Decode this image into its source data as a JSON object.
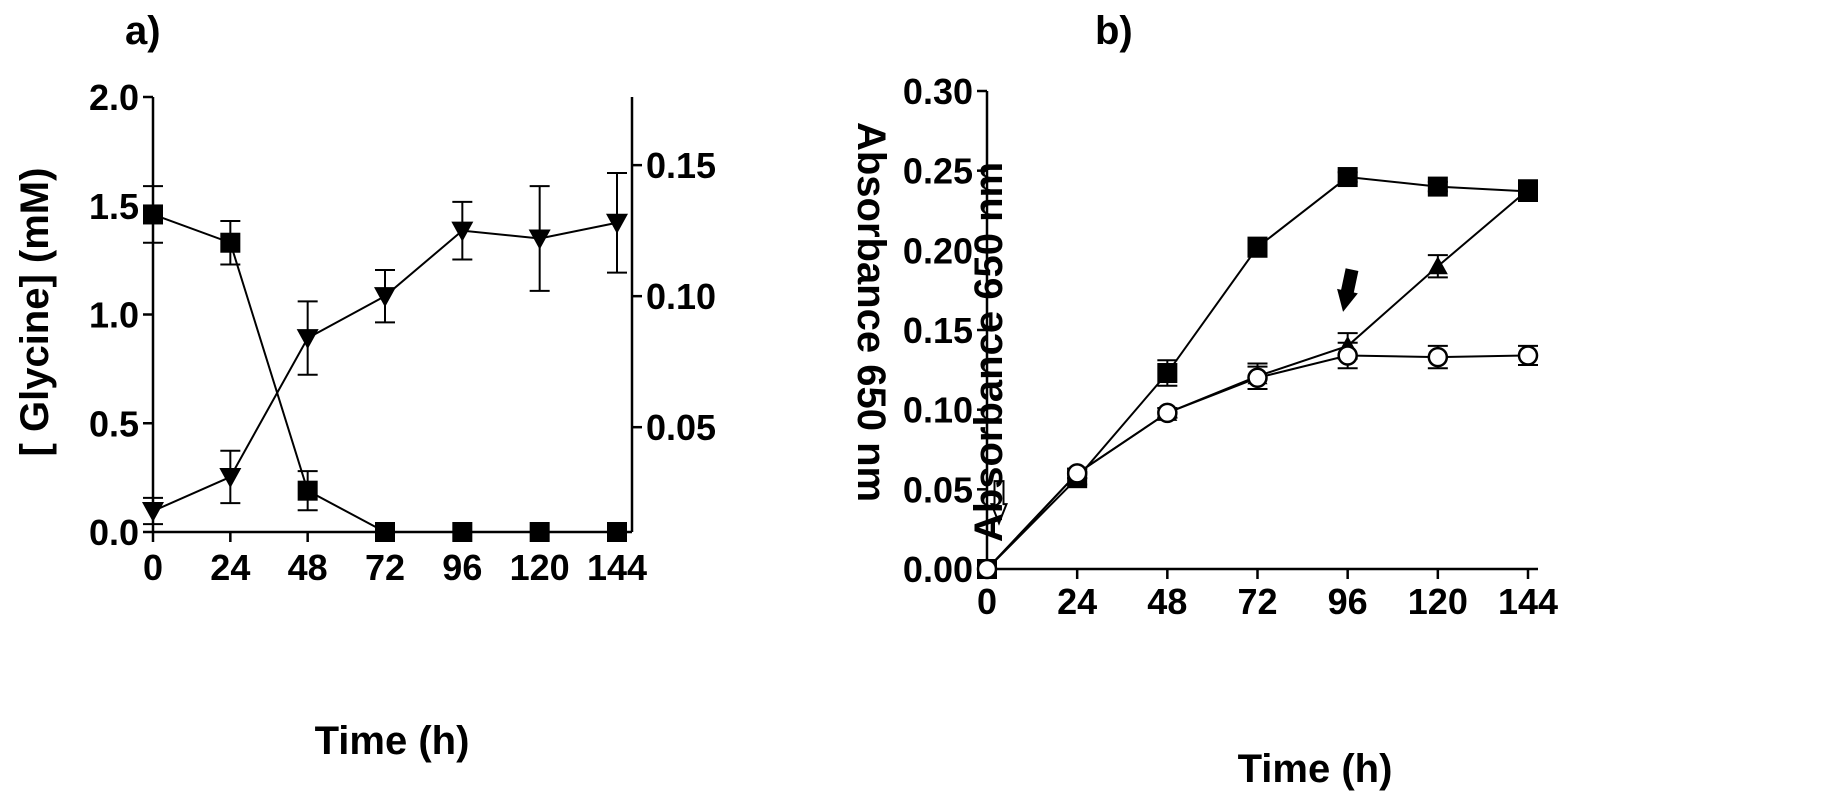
{
  "chart_data": [
    {
      "panel_label": "a)",
      "type": "line",
      "xlabel": "Time (h)",
      "ylabel_left": "[ Glycine] (mM)",
      "ylabel_right": "Absorbance 650 nm",
      "x_ticks": [
        "0",
        "24",
        "48",
        "72",
        "96",
        "120",
        "144"
      ],
      "y_left_ticks": [
        "0.0",
        "0.5",
        "1.0",
        "1.5",
        "2.0"
      ],
      "y_right_ticks": [
        "0.05",
        "0.10",
        "0.15"
      ],
      "xlim": [
        0,
        144
      ],
      "ylim_left": [
        0,
        2.0
      ],
      "ylim_right": [
        0.01,
        0.176
      ],
      "series": [
        {
          "marker": "square",
          "axis": "left",
          "x": [
            0,
            24,
            48,
            72,
            96,
            120,
            144
          ],
          "y": [
            1.46,
            1.33,
            0.19,
            0.0,
            0.0,
            0.0,
            0.0
          ],
          "err": [
            0.13,
            0.1,
            0.09,
            0.0,
            0.0,
            0.0,
            0.0
          ]
        },
        {
          "marker": "triangle-down",
          "axis": "right",
          "x": [
            0,
            24,
            48,
            72,
            96,
            120,
            144
          ],
          "y": [
            0.018,
            0.031,
            0.084,
            0.1,
            0.125,
            0.122,
            0.128
          ],
          "err": [
            0.005,
            0.01,
            0.014,
            0.01,
            0.011,
            0.02,
            0.019
          ]
        }
      ]
    },
    {
      "panel_label": "b)",
      "type": "line",
      "xlabel": "Time (h)",
      "ylabel": "Absorbance 650 nm",
      "x_ticks": [
        "0",
        "24",
        "48",
        "72",
        "96",
        "120",
        "144"
      ],
      "y_ticks": [
        "0.00",
        "0.05",
        "0.10",
        "0.15",
        "0.20",
        "0.25",
        "0.30"
      ],
      "xlim": [
        0,
        144
      ],
      "ylim": [
        0,
        0.3
      ],
      "series": [
        {
          "marker": "square",
          "x": [
            0,
            24,
            48,
            72,
            96,
            120,
            144
          ],
          "y": [
            0.0,
            0.057,
            0.123,
            0.202,
            0.246,
            0.24,
            0.237
          ],
          "err": [
            0.0,
            0.004,
            0.008,
            0.006,
            0.003,
            0.003,
            0.006
          ]
        },
        {
          "marker": "triangle-up",
          "x": [
            0,
            24,
            48,
            72,
            96,
            120,
            144
          ],
          "y": [
            0.0,
            0.06,
            0.098,
            0.121,
            0.14,
            0.19,
            0.238
          ],
          "err": [
            0.0,
            0.003,
            0.003,
            0.008,
            0.008,
            0.007,
            0.006
          ]
        },
        {
          "marker": "circle-open",
          "x": [
            0,
            24,
            48,
            72,
            96,
            120,
            144
          ],
          "y": [
            0.0,
            0.06,
            0.098,
            0.12,
            0.134,
            0.133,
            0.134
          ],
          "err": [
            0.0,
            0.003,
            0.003,
            0.007,
            0.008,
            0.007,
            0.006
          ]
        }
      ],
      "annotations": [
        {
          "type": "open-arrow",
          "x": 0,
          "y": 0.042
        },
        {
          "type": "filled-arrow",
          "x": 96,
          "y": 0.175
        }
      ]
    }
  ]
}
